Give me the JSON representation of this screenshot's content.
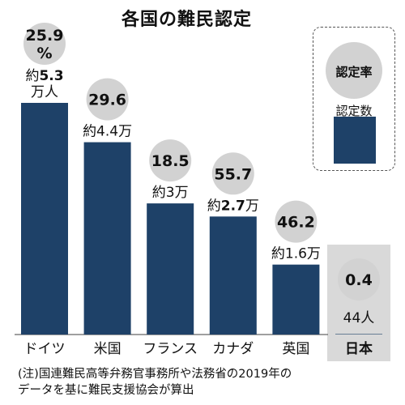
{
  "title": "各国の難民認定",
  "note_line1": "(注)国連難民高等弁務官事務所や法務省の2019年の",
  "note_line2": "データを基に難民支援協会が算出",
  "legend": {
    "rate_label": "認定率",
    "count_label": "認定数",
    "bar_color": "#1e4168",
    "circle_color": "#d2d2d2"
  },
  "chart_data": {
    "type": "bar",
    "title": "各国の難民認定",
    "rate_unit": "%",
    "count_unit": "万人",
    "categories": [
      "ドイツ",
      "米国",
      "フランス",
      "カナダ",
      "英国",
      "日本"
    ],
    "series": [
      {
        "name": "認定数",
        "values": [
          53000,
          44000,
          30000,
          27000,
          16000,
          44
        ]
      },
      {
        "name": "認定率",
        "values": [
          25.9,
          29.6,
          18.5,
          55.7,
          46.2,
          0.4
        ]
      }
    ],
    "rate_labels": [
      "25.9\n%",
      "29.6",
      "18.5",
      "55.7",
      "46.2",
      "0.4"
    ],
    "count_labels": [
      [
        {
          "t": "約",
          "b": false
        },
        {
          "t": "5.3",
          "b": true
        },
        {
          "t": "\n万人",
          "b": false
        }
      ],
      [
        {
          "t": "約4.4万",
          "b": false
        }
      ],
      [
        {
          "t": "約3万",
          "b": false
        }
      ],
      [
        {
          "t": "約",
          "b": false
        },
        {
          "t": "2.7",
          "b": true
        },
        {
          "t": "万",
          "b": false
        }
      ],
      [
        {
          "t": "約1.6万",
          "b": false
        }
      ],
      [
        {
          "t": "44人",
          "b": false
        }
      ]
    ],
    "highlight_index": 5
  }
}
